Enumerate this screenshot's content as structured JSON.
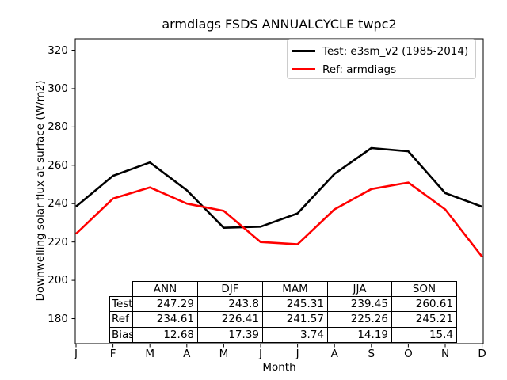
{
  "chart_data": {
    "type": "line",
    "title": "armdiags FSDS ANNUALCYCLE twpc2",
    "xlabel": "Month",
    "ylabel": "Downwelling solar flux at surface (W/m2)",
    "x_tick_labels": [
      "J",
      "F",
      "M",
      "A",
      "M",
      "J",
      "J",
      "A",
      "S",
      "O",
      "N",
      "D"
    ],
    "yticks": [
      180,
      200,
      220,
      240,
      260,
      280,
      300,
      320
    ],
    "ylim": [
      167,
      326
    ],
    "grid": false,
    "legend_position": "upper right",
    "series": [
      {
        "name": "Test: e3sm_v2 (1985-2014)",
        "color": "#000000",
        "values": [
          238.5,
          254.5,
          261.5,
          247.0,
          227.4,
          228.0,
          234.9,
          255.5,
          269.0,
          267.3,
          245.5,
          238.4
        ]
      },
      {
        "name": "Ref: armdiags",
        "color": "#ff0000",
        "values": [
          224.3,
          242.6,
          248.5,
          240.0,
          236.2,
          220.0,
          218.8,
          237.0,
          247.6,
          251.0,
          237.0,
          212.3
        ]
      }
    ],
    "stats_table": {
      "col_headers": [
        "ANN",
        "DJF",
        "MAM",
        "JJA",
        "SON"
      ],
      "rows": [
        {
          "label": "Test",
          "values": [
            "247.29",
            "243.8",
            "245.31",
            "239.45",
            "260.61"
          ]
        },
        {
          "label": "Ref",
          "values": [
            "234.61",
            "226.41",
            "241.57",
            "225.26",
            "245.21"
          ]
        },
        {
          "label": "Bias",
          "values": [
            "12.68",
            "17.39",
            "3.74",
            "14.19",
            "15.4"
          ]
        }
      ]
    }
  }
}
